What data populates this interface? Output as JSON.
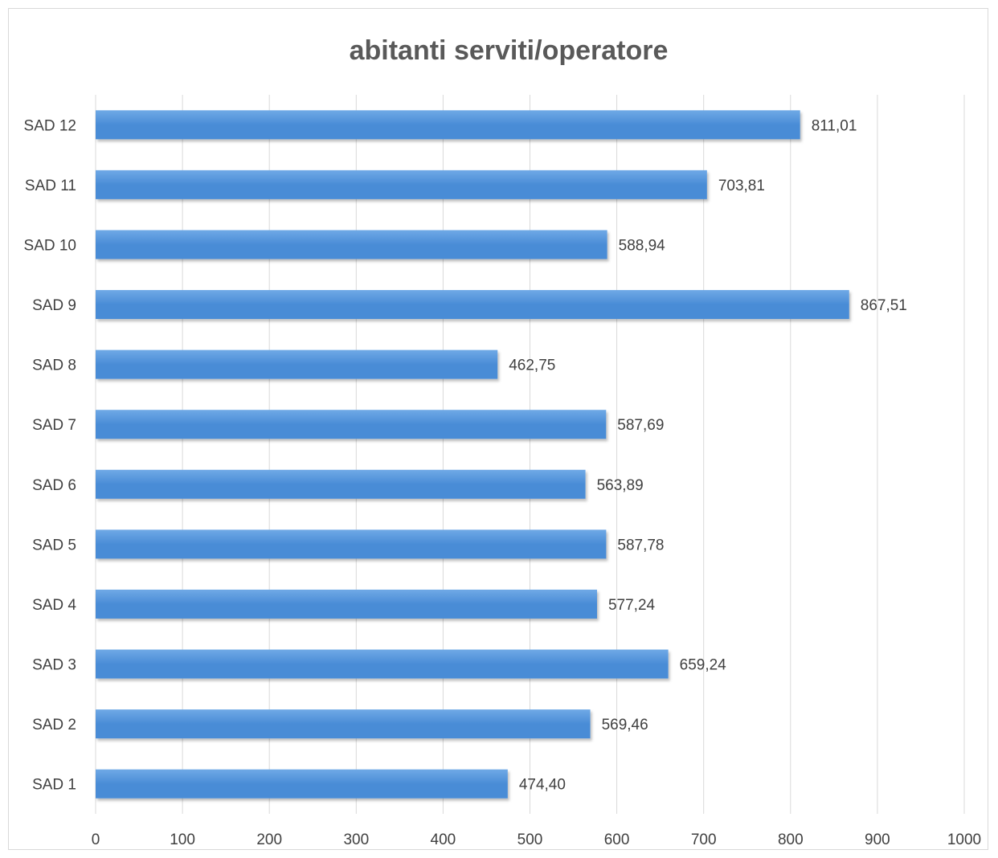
{
  "chart_data": {
    "type": "bar",
    "orientation": "horizontal",
    "title": "abitanti serviti/operatore",
    "categories": [
      "SAD 1",
      "SAD 2",
      "SAD 3",
      "SAD 4",
      "SAD 5",
      "SAD 6",
      "SAD 7",
      "SAD 8",
      "SAD 9",
      "SAD 10",
      "SAD 11",
      "SAD 12"
    ],
    "values": [
      474.4,
      569.46,
      659.24,
      577.24,
      587.78,
      563.89,
      587.69,
      462.75,
      867.51,
      588.94,
      703.81,
      811.01
    ],
    "data_labels": [
      "474,40",
      "569,46",
      "659,24",
      "577,24",
      "587,78",
      "563,89",
      "587,69",
      "462,75",
      "867,51",
      "588,94",
      "703,81",
      "811,01"
    ],
    "xlim": [
      0,
      1000
    ],
    "x_ticks": [
      0,
      100,
      200,
      300,
      400,
      500,
      600,
      700,
      800,
      900,
      1000
    ],
    "x_tick_labels": [
      "0",
      "100",
      "200",
      "300",
      "400",
      "500",
      "600",
      "700",
      "800",
      "900",
      "1000"
    ],
    "grid": true,
    "legend": false,
    "bar_color": "#4a8cd6",
    "bar_color_light": "#6fa9e6"
  }
}
